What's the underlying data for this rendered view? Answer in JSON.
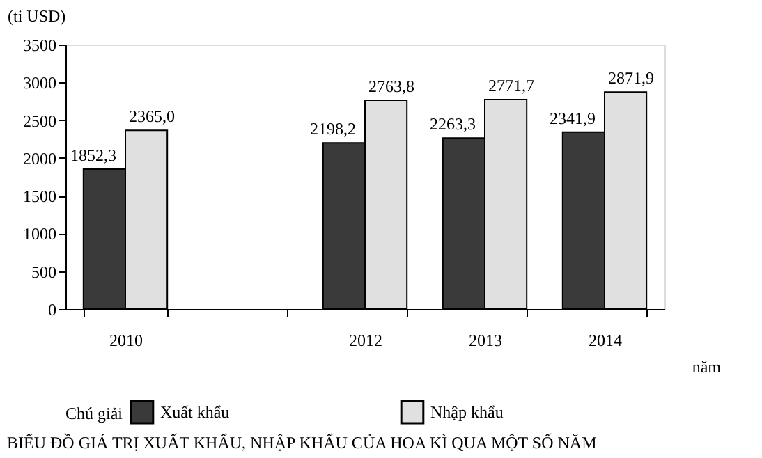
{
  "chart_data": {
    "type": "bar",
    "title": "BIỂU ĐỒ GIÁ TRỊ XUẤT KHẨU, NHẬP KHẨU CỦA HOA KÌ QUA MỘT SỐ NĂM",
    "xlabel": "năm",
    "ylabel": "(ti USD)",
    "legend_title": "Chú giải",
    "categories": [
      "2010",
      null,
      "2012",
      "2013",
      "2014"
    ],
    "series": [
      {
        "name": "Xuất khẩu",
        "color": "#3a3a3a",
        "values": [
          1852.3,
          null,
          2198.2,
          2263.3,
          2341.9
        ],
        "value_labels": [
          "1852,3",
          null,
          "2198,2",
          "2263,3",
          "2341,9"
        ]
      },
      {
        "name": "Nhập khẩu",
        "color": "#e0e0e0",
        "values": [
          2365.0,
          null,
          2763.8,
          2771.7,
          2871.9
        ],
        "value_labels": [
          "2365,0",
          null,
          "2763,8",
          "2771,7",
          "2871,9"
        ]
      }
    ],
    "ylim": [
      0,
      3500
    ],
    "yticks": [
      0,
      500,
      1000,
      1500,
      2000,
      2500,
      3000,
      3500
    ],
    "legend": "bottom",
    "grid": false
  }
}
